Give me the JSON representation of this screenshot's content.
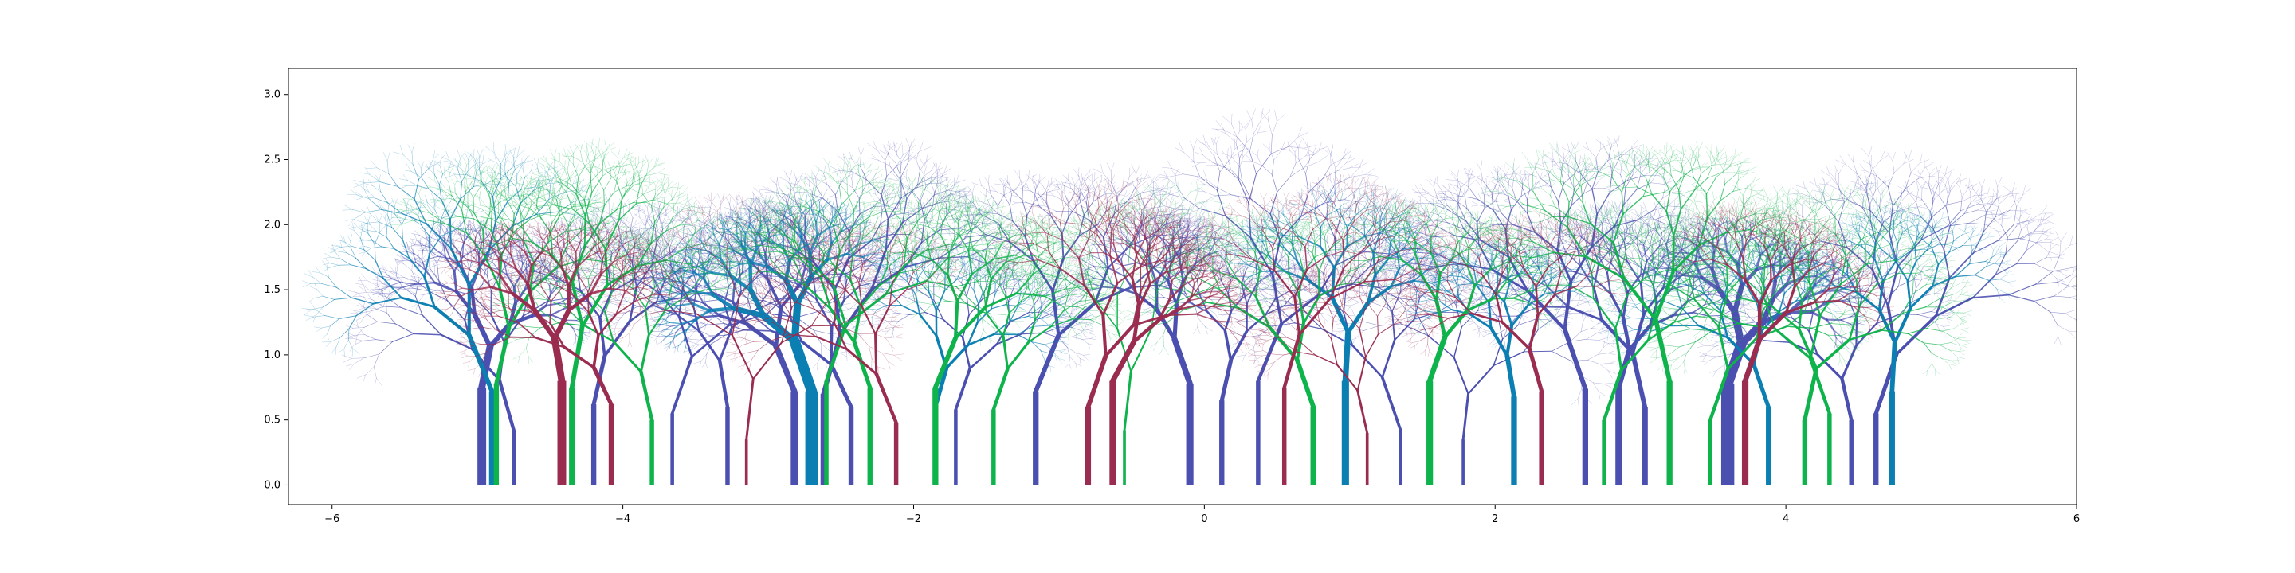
{
  "chart_data": {
    "type": "line",
    "description_free": true,
    "title": "",
    "xlabel": "",
    "ylabel": "",
    "xlim": [
      -6.3,
      6.0
    ],
    "ylim": [
      -0.15,
      3.2
    ],
    "grid": false,
    "x_ticks": [
      {
        "value": -6,
        "label": "−6"
      },
      {
        "value": -4,
        "label": "−4"
      },
      {
        "value": -2,
        "label": "−2"
      },
      {
        "value": 0,
        "label": "0"
      },
      {
        "value": 2,
        "label": "2"
      },
      {
        "value": 4,
        "label": "4"
      },
      {
        "value": 6,
        "label": "6"
      }
    ],
    "y_ticks": [
      {
        "value": 0.0,
        "label": "0.0"
      },
      {
        "value": 0.5,
        "label": "0.5"
      },
      {
        "value": 1.0,
        "label": "1.0"
      },
      {
        "value": 1.5,
        "label": "1.5"
      },
      {
        "value": 2.0,
        "label": "2.0"
      },
      {
        "value": 2.5,
        "label": "2.5"
      },
      {
        "value": 3.0,
        "label": "3.0"
      }
    ],
    "palette": [
      "#4b4fb0",
      "#0b7fb2",
      "#0fb34c",
      "#9a2c4f"
    ],
    "series": [
      {
        "color": "#4b4fb0",
        "trees": [
          {
            "x": -4.97,
            "width": 0.06,
            "trunk_height": 0.75,
            "angle": 0.18
          },
          {
            "x": -4.75,
            "width": 0.03,
            "trunk_height": 0.42,
            "angle": -0.25
          },
          {
            "x": -4.2,
            "width": 0.035,
            "trunk_height": 0.62,
            "angle": 0.2
          },
          {
            "x": -3.66,
            "width": 0.025,
            "trunk_height": 0.55,
            "angle": 0.3
          },
          {
            "x": -3.28,
            "width": 0.03,
            "trunk_height": 0.6,
            "angle": -0.15
          },
          {
            "x": -2.82,
            "width": 0.05,
            "trunk_height": 0.72,
            "angle": -0.35
          },
          {
            "x": -2.62,
            "width": 0.04,
            "trunk_height": 0.7,
            "angle": 0.25
          },
          {
            "x": -2.43,
            "width": 0.035,
            "trunk_height": 0.6,
            "angle": -0.4
          },
          {
            "x": -1.71,
            "width": 0.025,
            "trunk_height": 0.58,
            "angle": 0.3
          },
          {
            "x": -1.16,
            "width": 0.04,
            "trunk_height": 0.72,
            "angle": 0.35
          },
          {
            "x": -0.1,
            "width": 0.05,
            "trunk_height": 0.78,
            "angle": -0.3
          },
          {
            "x": 0.12,
            "width": 0.035,
            "trunk_height": 0.65,
            "angle": 0.2
          },
          {
            "x": 0.37,
            "width": 0.03,
            "trunk_height": 0.8,
            "angle": 0.35
          },
          {
            "x": 1.35,
            "width": 0.025,
            "trunk_height": 0.42,
            "angle": -0.3
          },
          {
            "x": 1.78,
            "width": 0.02,
            "trunk_height": 0.35,
            "angle": 0.1
          },
          {
            "x": 2.62,
            "width": 0.04,
            "trunk_height": 0.74,
            "angle": -0.3
          },
          {
            "x": 2.85,
            "width": 0.045,
            "trunk_height": 0.75,
            "angle": 0.25
          },
          {
            "x": 3.03,
            "width": 0.04,
            "trunk_height": 0.6,
            "angle": -0.2
          },
          {
            "x": 3.6,
            "width": 0.09,
            "trunk_height": 0.78,
            "angle": 0.3
          },
          {
            "x": 4.45,
            "width": 0.03,
            "trunk_height": 0.5,
            "angle": -0.2
          },
          {
            "x": 4.62,
            "width": 0.035,
            "trunk_height": 0.55,
            "angle": 0.3
          }
        ]
      },
      {
        "color": "#0b7fb2",
        "trees": [
          {
            "x": -4.9,
            "width": 0.04,
            "trunk_height": 0.72,
            "angle": -0.35
          },
          {
            "x": -2.7,
            "width": 0.09,
            "trunk_height": 0.72,
            "angle": -0.3
          },
          {
            "x": -1.85,
            "width": 0.035,
            "trunk_height": 0.6,
            "angle": 0.25
          },
          {
            "x": 0.97,
            "width": 0.05,
            "trunk_height": 0.8,
            "angle": 0.05
          },
          {
            "x": 2.13,
            "width": 0.04,
            "trunk_height": 0.68,
            "angle": -0.15
          },
          {
            "x": 3.88,
            "width": 0.035,
            "trunk_height": 0.6,
            "angle": -0.3
          },
          {
            "x": 4.73,
            "width": 0.04,
            "trunk_height": 0.72,
            "angle": 0.05
          }
        ]
      },
      {
        "color": "#0fb34c",
        "trees": [
          {
            "x": -4.87,
            "width": 0.035,
            "trunk_height": 0.78,
            "angle": 0.2
          },
          {
            "x": -4.35,
            "width": 0.04,
            "trunk_height": 0.75,
            "angle": 0.15
          },
          {
            "x": -3.8,
            "width": 0.03,
            "trunk_height": 0.5,
            "angle": -0.2
          },
          {
            "x": -2.6,
            "width": 0.03,
            "trunk_height": 0.8,
            "angle": 0.3
          },
          {
            "x": -2.3,
            "width": 0.035,
            "trunk_height": 0.75,
            "angle": -0.3
          },
          {
            "x": -1.85,
            "width": 0.04,
            "trunk_height": 0.75,
            "angle": 0.35
          },
          {
            "x": -1.45,
            "width": 0.03,
            "trunk_height": 0.58,
            "angle": 0.3
          },
          {
            "x": -0.55,
            "width": 0.02,
            "trunk_height": 0.42,
            "angle": 0.1
          },
          {
            "x": 0.75,
            "width": 0.04,
            "trunk_height": 0.6,
            "angle": -0.3
          },
          {
            "x": 1.55,
            "width": 0.045,
            "trunk_height": 0.8,
            "angle": 0.3
          },
          {
            "x": 2.75,
            "width": 0.03,
            "trunk_height": 0.5,
            "angle": 0.3
          },
          {
            "x": 3.2,
            "width": 0.04,
            "trunk_height": 0.8,
            "angle": -0.2
          },
          {
            "x": 3.48,
            "width": 0.03,
            "trunk_height": 0.5,
            "angle": 0.3
          },
          {
            "x": 4.13,
            "width": 0.035,
            "trunk_height": 0.5,
            "angle": 0.2
          },
          {
            "x": 4.3,
            "width": 0.03,
            "trunk_height": 0.55,
            "angle": -0.3
          }
        ]
      },
      {
        "color": "#9a2c4f",
        "trees": [
          {
            "x": -4.42,
            "width": 0.06,
            "trunk_height": 0.8,
            "angle": -0.15
          },
          {
            "x": -4.08,
            "width": 0.035,
            "trunk_height": 0.62,
            "angle": -0.4
          },
          {
            "x": -3.15,
            "width": 0.02,
            "trunk_height": 0.35,
            "angle": 0.1
          },
          {
            "x": -2.12,
            "width": 0.03,
            "trunk_height": 0.48,
            "angle": -0.35
          },
          {
            "x": -0.8,
            "width": 0.04,
            "trunk_height": 0.6,
            "angle": 0.3
          },
          {
            "x": -0.63,
            "width": 0.045,
            "trunk_height": 0.8,
            "angle": 0.45
          },
          {
            "x": 0.55,
            "width": 0.03,
            "trunk_height": 0.75,
            "angle": 0.25
          },
          {
            "x": 1.12,
            "width": 0.02,
            "trunk_height": 0.4,
            "angle": -0.2
          },
          {
            "x": 2.32,
            "width": 0.035,
            "trunk_height": 0.72,
            "angle": -0.25
          },
          {
            "x": 3.72,
            "width": 0.045,
            "trunk_height": 0.8,
            "angle": 0.3
          }
        ]
      }
    ]
  }
}
